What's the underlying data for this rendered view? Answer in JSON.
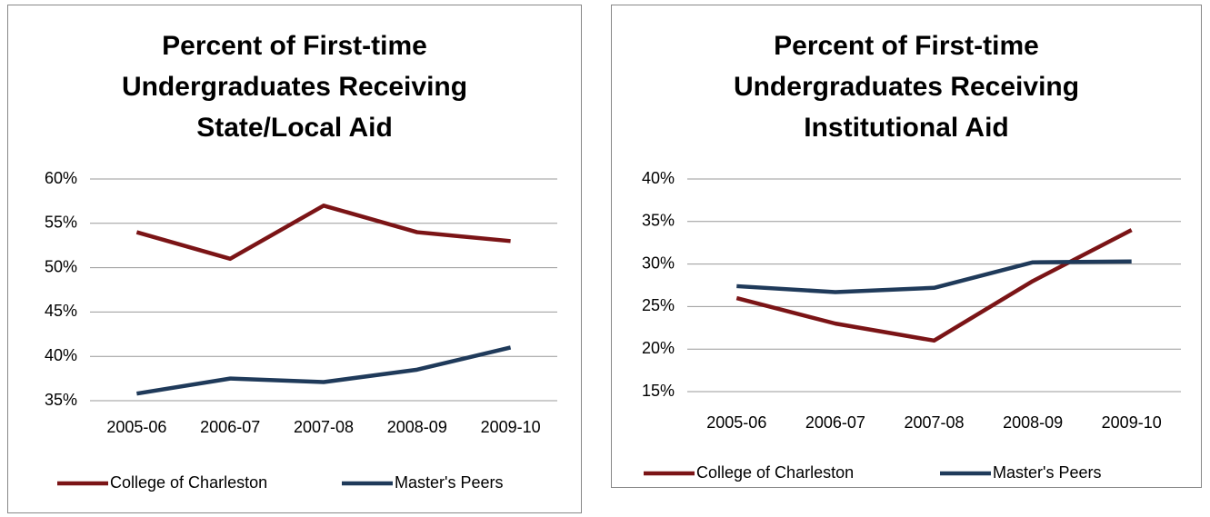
{
  "chart_data": [
    {
      "type": "line",
      "title": "Percent of First-time Undergraduates Receiving State/Local Aid",
      "categories": [
        "2005-06",
        "2006-07",
        "2007-08",
        "2008-09",
        "2009-10"
      ],
      "series": [
        {
          "name": "College of Charleston",
          "color": "#7b1416",
          "values": [
            54,
            51,
            57,
            54,
            53
          ]
        },
        {
          "name": "Master's Peers",
          "color": "#1f3a5a",
          "values": [
            35.8,
            37.5,
            37.1,
            38.5,
            41
          ]
        }
      ],
      "ylim": [
        35,
        60
      ],
      "yticks": [
        {
          "value": 35,
          "label": "35%"
        },
        {
          "value": 40,
          "label": "40%"
        },
        {
          "value": 45,
          "label": "45%"
        },
        {
          "value": 50,
          "label": "50%"
        },
        {
          "value": 55,
          "label": "55%"
        },
        {
          "value": 60,
          "label": "60%"
        }
      ],
      "grid": true,
      "legend": "bottom"
    },
    {
      "type": "line",
      "title": "Percent of First-time Undergraduates Receiving Institutional Aid",
      "categories": [
        "2005-06",
        "2006-07",
        "2007-08",
        "2008-09",
        "2009-10"
      ],
      "series": [
        {
          "name": "College of Charleston",
          "color": "#7b1416",
          "values": [
            26,
            23,
            21,
            28,
            34
          ]
        },
        {
          "name": "Master's Peers",
          "color": "#1f3a5a",
          "values": [
            27.4,
            26.7,
            27.2,
            30.2,
            30.3
          ]
        }
      ],
      "ylim": [
        15,
        40
      ],
      "yticks": [
        {
          "value": 15,
          "label": "15%"
        },
        {
          "value": 20,
          "label": "20%"
        },
        {
          "value": 25,
          "label": "25%"
        },
        {
          "value": 30,
          "label": "30%"
        },
        {
          "value": 35,
          "label": "35%"
        },
        {
          "value": 40,
          "label": "40%"
        }
      ],
      "grid": true,
      "legend": "bottom"
    }
  ]
}
